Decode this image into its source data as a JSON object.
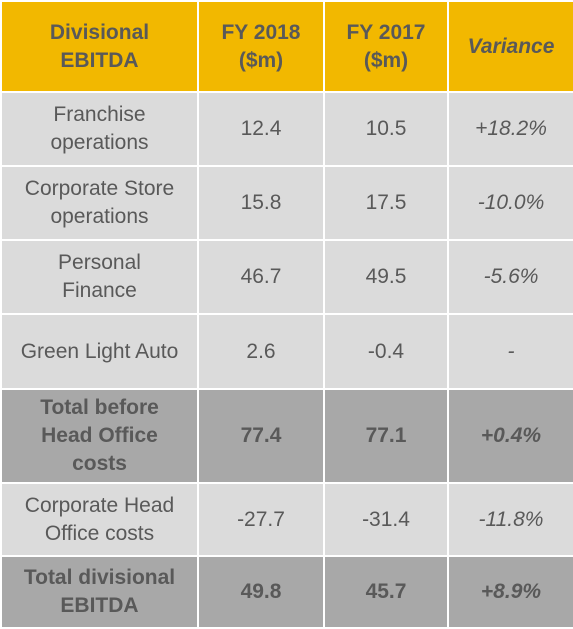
{
  "table": {
    "headers": {
      "label_line1": "Divisional",
      "label_line2": "EBITDA",
      "fy2018_line1": "FY 2018",
      "fy2018_line2": "($m)",
      "fy2017_line1": "FY 2017",
      "fy2017_line2": "($m)",
      "variance": "Variance"
    },
    "rows": [
      {
        "label_line1": "Franchise",
        "label_line2": "operations",
        "label_line3": "",
        "fy2018": "12.4",
        "fy2017": "10.5",
        "variance": "+18.2%"
      },
      {
        "label_line1": "Corporate Store",
        "label_line2": "operations",
        "label_line3": "",
        "fy2018": "15.8",
        "fy2017": "17.5",
        "variance": "-10.0%"
      },
      {
        "label_line1": "Personal",
        "label_line2": "Finance",
        "label_line3": "",
        "fy2018": "46.7",
        "fy2017": "49.5",
        "variance": "-5.6%"
      },
      {
        "label_line1": "Green Light Auto",
        "label_line2": "",
        "label_line3": "",
        "fy2018": "2.6",
        "fy2017": "-0.4",
        "variance": "-"
      },
      {
        "label_line1": "Total before",
        "label_line2": "Head Office",
        "label_line3": "costs",
        "fy2018": "77.4",
        "fy2017": "77.1",
        "variance": "+0.4%"
      },
      {
        "label_line1": "Corporate Head",
        "label_line2": "Office costs",
        "label_line3": "",
        "fy2018": "-27.7",
        "fy2017": "-31.4",
        "variance": "-11.8%"
      },
      {
        "label_line1": "Total divisional",
        "label_line2": "EBITDA",
        "label_line3": "",
        "fy2018": "49.8",
        "fy2017": "45.7",
        "variance": "+8.9%"
      }
    ]
  },
  "colors": {
    "header_background": "#f2b800",
    "row_background": "#dbdbdb",
    "total_row_background": "#a8a8a8",
    "text": "#595959",
    "gridline": "#ffffff"
  }
}
